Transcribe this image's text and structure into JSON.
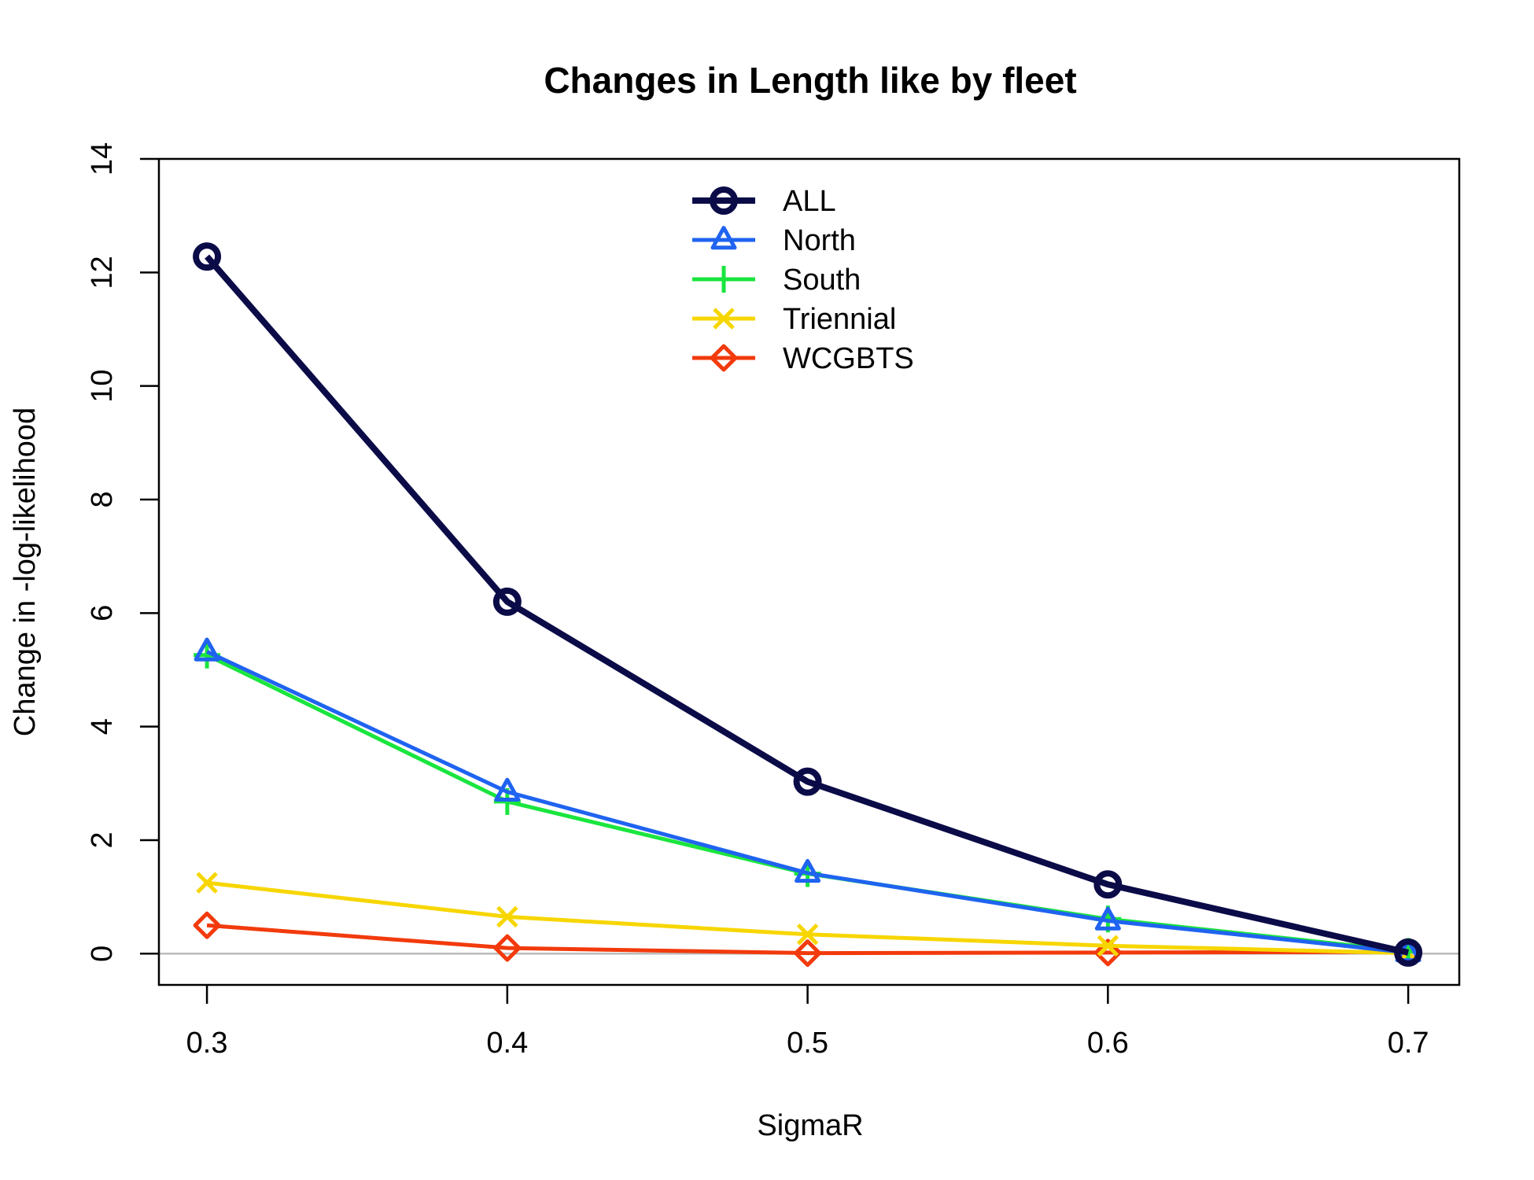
{
  "chart_data": {
    "type": "line",
    "title": "Changes in Length like by fleet",
    "xlabel": "SigmaR",
    "ylabel": "Change in -log-likelihood",
    "x": [
      0.3,
      0.4,
      0.5,
      0.6,
      0.7
    ],
    "x_ticks": [
      "0.3",
      "0.4",
      "0.5",
      "0.6",
      "0.7"
    ],
    "y_ticks": [
      "0",
      "2",
      "4",
      "6",
      "8",
      "10",
      "12",
      "14"
    ],
    "xlim": [
      0.284,
      0.717
    ],
    "ylim": [
      -0.55,
      14
    ],
    "grid": false,
    "reference_line": {
      "y": 0,
      "color": "#bbbbbb"
    },
    "legend_position": "top-center",
    "series": [
      {
        "name": "ALL",
        "color": "#0b0b48",
        "marker": "circle",
        "values": [
          12.28,
          6.2,
          3.03,
          1.22,
          0.02
        ]
      },
      {
        "name": "North",
        "color": "#1f63f0",
        "marker": "triangle",
        "values": [
          5.32,
          2.85,
          1.42,
          0.58,
          0.02
        ]
      },
      {
        "name": "South",
        "color": "#1ae53e",
        "marker": "plus",
        "values": [
          5.26,
          2.68,
          1.41,
          0.61,
          0.04
        ]
      },
      {
        "name": "Triennial",
        "color": "#f7d600",
        "marker": "cross",
        "values": [
          1.25,
          0.65,
          0.34,
          0.14,
          0.01
        ]
      },
      {
        "name": "WCGBTS",
        "color": "#f23a0c",
        "marker": "diamond",
        "values": [
          0.5,
          0.1,
          0.01,
          0.02,
          0.03
        ]
      }
    ]
  }
}
